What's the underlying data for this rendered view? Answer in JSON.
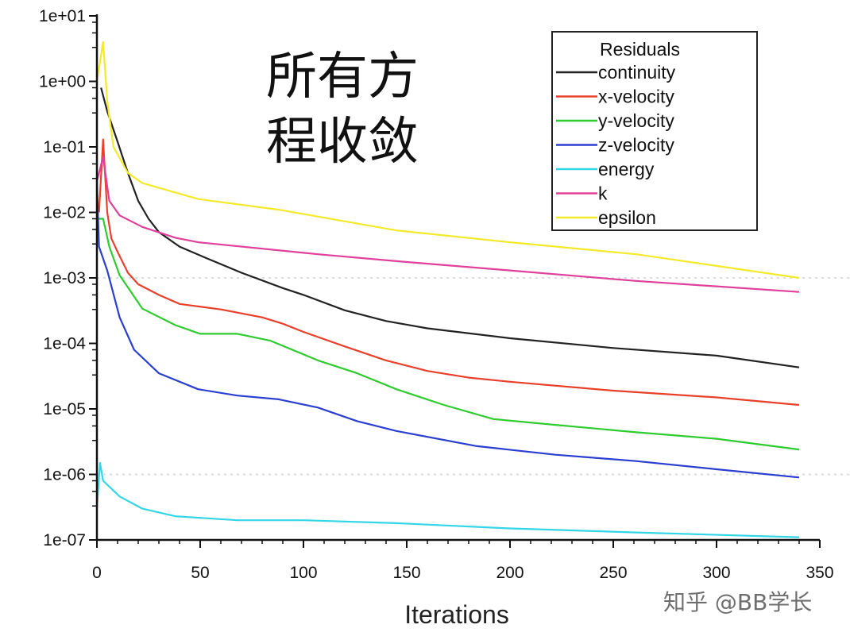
{
  "chart_data": {
    "type": "line",
    "title": "",
    "annotation_lines": [
      "所有方",
      "程收敛"
    ],
    "xlabel": "Iterations",
    "ylabel": "",
    "xlim": [
      0,
      350
    ],
    "ylim": [
      1e-07,
      10
    ],
    "yscale": "log",
    "x_ticks": [
      "0",
      "50",
      "100",
      "150",
      "200",
      "250",
      "300",
      "350"
    ],
    "y_ticks": [
      "1e+01",
      "1e+00",
      "1e-01",
      "1e-02",
      "1e-03",
      "1e-04",
      "1e-05",
      "1e-06",
      "1e-07"
    ],
    "grid": false,
    "legend": {
      "title": "Residuals",
      "placement": "top-right"
    },
    "series": [
      {
        "name": "continuity",
        "color": "#222222",
        "points": [
          [
            2,
            0.8
          ],
          [
            5,
            0.35
          ],
          [
            10,
            0.12
          ],
          [
            15,
            0.04
          ],
          [
            20,
            0.015
          ],
          [
            25,
            0.008
          ],
          [
            30,
            0.005
          ],
          [
            40,
            0.003
          ],
          [
            50,
            0.0022
          ],
          [
            70,
            0.0012
          ],
          [
            90,
            0.0007
          ],
          [
            100,
            0.00055
          ],
          [
            120,
            0.00032
          ],
          [
            140,
            0.00022
          ],
          [
            160,
            0.00017
          ],
          [
            200,
            0.00012
          ],
          [
            250,
            8.5e-05
          ],
          [
            300,
            6.5e-05
          ],
          [
            340,
            4.3e-05
          ]
        ]
      },
      {
        "name": "x-velocity",
        "color": "#e8402a",
        "points": [
          [
            1,
            0.01
          ],
          [
            3,
            0.13
          ],
          [
            5,
            0.01
          ],
          [
            7,
            0.004
          ],
          [
            10,
            0.0025
          ],
          [
            15,
            0.0012
          ],
          [
            20,
            0.0008
          ],
          [
            30,
            0.00055
          ],
          [
            40,
            0.0004
          ],
          [
            60,
            0.00033
          ],
          [
            80,
            0.00025
          ],
          [
            90,
            0.0002
          ],
          [
            100,
            0.00015
          ],
          [
            120,
            9e-05
          ],
          [
            140,
            5.5e-05
          ],
          [
            160,
            3.8e-05
          ],
          [
            180,
            3e-05
          ],
          [
            200,
            2.6e-05
          ],
          [
            250,
            1.9e-05
          ],
          [
            300,
            1.5e-05
          ],
          [
            340,
            1.15e-05
          ]
        ]
      },
      {
        "name": "y-velocity",
        "color": "#2ecc2e",
        "points": [
          [
            0,
            0.008
          ],
          [
            3,
            0.008
          ],
          [
            6,
            0.003
          ],
          [
            11,
            0.0011
          ],
          [
            22,
            0.00034
          ],
          [
            38,
            0.00019
          ],
          [
            50,
            0.00014
          ],
          [
            68,
            0.00014
          ],
          [
            84,
            0.00011
          ],
          [
            107,
            5.5e-05
          ],
          [
            126,
            3.5e-05
          ],
          [
            145,
            2e-05
          ],
          [
            168,
            1.15e-05
          ],
          [
            192,
            7e-06
          ],
          [
            222,
            5.7e-06
          ],
          [
            261,
            4.4e-06
          ],
          [
            300,
            3.5e-06
          ],
          [
            340,
            2.4e-06
          ]
        ]
      },
      {
        "name": "z-velocity",
        "color": "#2a3fd0",
        "points": [
          [
            0,
            0.03
          ],
          [
            1,
            0.003
          ],
          [
            5,
            0.0013
          ],
          [
            11,
            0.00025
          ],
          [
            18,
            8e-05
          ],
          [
            30,
            3.5e-05
          ],
          [
            49,
            2e-05
          ],
          [
            68,
            1.6e-05
          ],
          [
            88,
            1.4e-05
          ],
          [
            107,
            1.05e-05
          ],
          [
            126,
            6.5e-06
          ],
          [
            145,
            4.6e-06
          ],
          [
            184,
            2.7e-06
          ],
          [
            222,
            2e-06
          ],
          [
            261,
            1.6e-06
          ],
          [
            300,
            1.2e-06
          ],
          [
            340,
            9e-07
          ]
        ]
      },
      {
        "name": "energy",
        "color": "#33d6e6",
        "points": [
          [
            0,
            3e-07
          ],
          [
            1.5,
            1.5e-06
          ],
          [
            3,
            8e-07
          ],
          [
            11,
            4.6e-07
          ],
          [
            22,
            3e-07
          ],
          [
            38,
            2.3e-07
          ],
          [
            68,
            2e-07
          ],
          [
            100,
            2e-07
          ],
          [
            145,
            1.8e-07
          ],
          [
            200,
            1.5e-07
          ],
          [
            261,
            1.3e-07
          ],
          [
            340,
            1.1e-07
          ]
        ]
      },
      {
        "name": "k",
        "color": "#e0409a",
        "points": [
          [
            0,
            0.03
          ],
          [
            3,
            0.07
          ],
          [
            6,
            0.015
          ],
          [
            11,
            0.009
          ],
          [
            22,
            0.006
          ],
          [
            38,
            0.0041
          ],
          [
            49,
            0.0035
          ],
          [
            107,
            0.0023
          ],
          [
            145,
            0.0018
          ],
          [
            200,
            0.0013
          ],
          [
            261,
            0.0009
          ],
          [
            340,
            0.00061
          ]
        ]
      },
      {
        "name": "epsilon",
        "color": "#f2ea2a",
        "points": [
          [
            0,
            1
          ],
          [
            3,
            4
          ],
          [
            5,
            0.5
          ],
          [
            8,
            0.1
          ],
          [
            15,
            0.04
          ],
          [
            22,
            0.028
          ],
          [
            49,
            0.016
          ],
          [
            88,
            0.011
          ],
          [
            145,
            0.0053
          ],
          [
            200,
            0.0035
          ],
          [
            261,
            0.0023
          ],
          [
            340,
            0.001
          ]
        ]
      }
    ]
  },
  "watermark": "知乎 @BB学长"
}
